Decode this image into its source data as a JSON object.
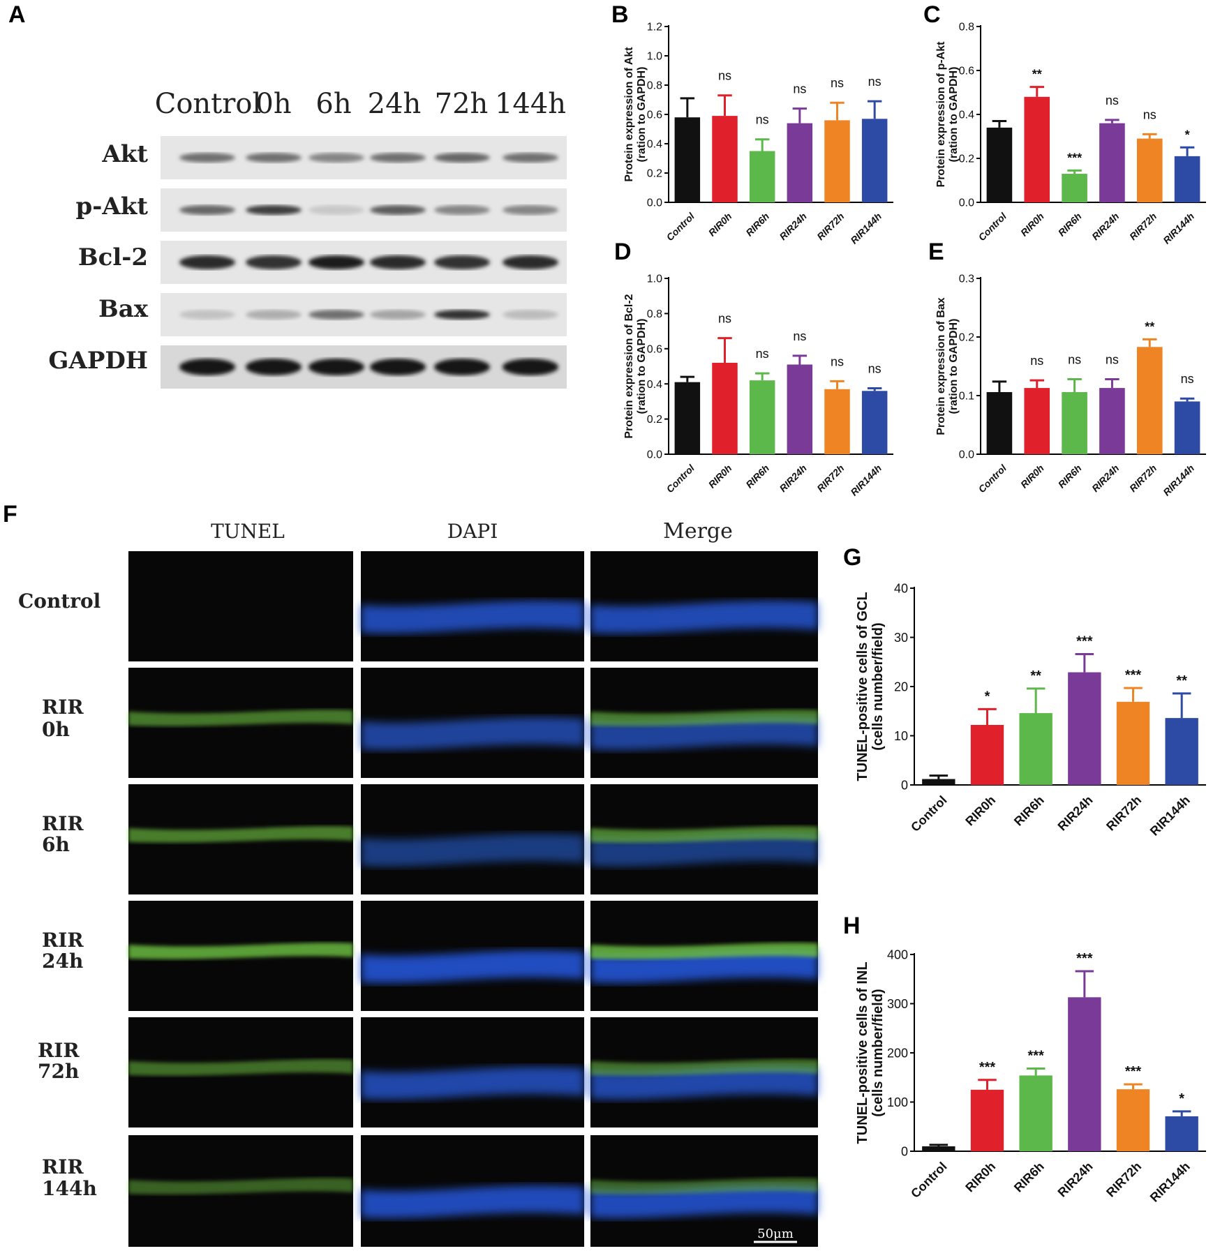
{
  "panel_letters": [
    "A",
    "B",
    "C",
    "D",
    "E",
    "F",
    "G",
    "H"
  ],
  "western_blot": {
    "lane_labels": [
      "Control",
      "0h",
      "6h",
      "24h",
      "72h",
      "144h"
    ],
    "row_labels": [
      "Akt",
      "p-Akt",
      "Bcl-2",
      "Bax",
      "GAPDH"
    ],
    "band_intensity": [
      [
        0.55,
        0.55,
        0.45,
        0.55,
        0.6,
        0.55
      ],
      [
        0.6,
        0.8,
        0.12,
        0.65,
        0.45,
        0.45
      ],
      [
        0.9,
        0.85,
        0.95,
        0.9,
        0.85,
        0.9
      ],
      [
        0.15,
        0.25,
        0.55,
        0.3,
        0.85,
        0.18
      ],
      [
        1,
        1,
        1,
        1,
        1,
        1
      ]
    ]
  },
  "microscopy": {
    "column_labels": [
      "TUNEL",
      "DAPI",
      "Merge"
    ],
    "row_labels": [
      [
        "Control"
      ],
      [
        "RIR",
        "0h"
      ],
      [
        "RIR",
        "6h"
      ],
      [
        "RIR",
        "24h"
      ],
      [
        "RIR",
        "72h"
      ],
      [
        "RIR",
        "144h"
      ]
    ],
    "scale_bar_label": "50μm"
  },
  "chart_data": [
    {
      "panel": "B",
      "type": "bar",
      "categories": [
        "Control",
        "RIR0h",
        "RIR6h",
        "RIR24h",
        "RIR72h",
        "RIR144h"
      ],
      "values": [
        0.58,
        0.59,
        0.35,
        0.54,
        0.56,
        0.57
      ],
      "errors": [
        0.13,
        0.14,
        0.08,
        0.1,
        0.12,
        0.12
      ],
      "annotations": [
        "",
        "ns",
        "ns",
        "ns",
        "ns",
        "ns"
      ],
      "ylabel": [
        "Protein expression of Akt",
        "(ration to GAPDH)"
      ],
      "ylim": [
        0,
        1.2
      ],
      "ticks": [
        "0.0",
        "0.2",
        "0.4",
        "0.6",
        "0.8",
        "1.0",
        "1.2"
      ]
    },
    {
      "panel": "C",
      "type": "bar",
      "categories": [
        "Control",
        "RIR0h",
        "RIR6h",
        "RIR24h",
        "RIR72h",
        "RIR144h"
      ],
      "values": [
        0.34,
        0.48,
        0.13,
        0.36,
        0.29,
        0.21
      ],
      "errors": [
        0.03,
        0.045,
        0.015,
        0.015,
        0.02,
        0.04
      ],
      "annotations": [
        "",
        "**",
        "***",
        "ns",
        "ns",
        "*"
      ],
      "ylabel": [
        "Protein expression of p-Akt",
        "(ration to GAPDH)"
      ],
      "ylim": [
        0,
        0.8
      ],
      "ticks": [
        "0.0",
        "0.2",
        "0.4",
        "0.6",
        "0.8"
      ]
    },
    {
      "panel": "D",
      "type": "bar",
      "categories": [
        "Control",
        "RIR0h",
        "RIR6h",
        "RIR24h",
        "RIR72h",
        "RIR144h"
      ],
      "values": [
        0.41,
        0.52,
        0.42,
        0.51,
        0.37,
        0.36
      ],
      "errors": [
        0.03,
        0.14,
        0.04,
        0.05,
        0.045,
        0.015
      ],
      "annotations": [
        "",
        "ns",
        "ns",
        "ns",
        "ns",
        "ns"
      ],
      "ylabel": [
        "Protein expression of Bcl-2",
        "(ration to GAPDH)"
      ],
      "ylim": [
        0,
        1.0
      ],
      "ticks": [
        "0.0",
        "0.2",
        "0.4",
        "0.6",
        "0.8",
        "1.0"
      ]
    },
    {
      "panel": "E",
      "type": "bar",
      "categories": [
        "Control",
        "RIR0h",
        "RIR6h",
        "RIR24h",
        "RIR72h",
        "RIR144h"
      ],
      "values": [
        0.106,
        0.113,
        0.106,
        0.113,
        0.183,
        0.09
      ],
      "errors": [
        0.018,
        0.013,
        0.022,
        0.015,
        0.013,
        0.005
      ],
      "annotations": [
        "",
        "ns",
        "ns",
        "ns",
        "**",
        "ns"
      ],
      "ylabel": [
        "Protein expression of Bax",
        "(ration to GAPDH)"
      ],
      "ylim": [
        0,
        0.3
      ],
      "ticks": [
        "0.0",
        "0.1",
        "0.2",
        "0.3"
      ]
    },
    {
      "panel": "G",
      "type": "bar",
      "categories": [
        "Control",
        "RIR0h",
        "RIR6h",
        "RIR24h",
        "RIR72h",
        "RIR144h"
      ],
      "values": [
        1.2,
        12.2,
        14.6,
        22.9,
        16.9,
        13.6
      ],
      "errors": [
        0.7,
        3.2,
        5.0,
        3.7,
        2.8,
        5.0
      ],
      "annotations": [
        "",
        "*",
        "**",
        "***",
        "***",
        "**"
      ],
      "ylabel": [
        "TUNEL-positive cells of GCL",
        "(cells number/field)"
      ],
      "ylim": [
        0,
        40
      ],
      "ticks": [
        "0",
        "10",
        "20",
        "30",
        "40"
      ]
    },
    {
      "panel": "H",
      "type": "bar",
      "categories": [
        "Control",
        "RIR0h",
        "RIR6h",
        "RIR24h",
        "RIR72h",
        "RIR144h"
      ],
      "values": [
        10,
        125,
        154,
        313,
        126,
        71
      ],
      "errors": [
        3,
        20,
        14,
        53,
        10,
        10
      ],
      "annotations": [
        "",
        "***",
        "***",
        "***",
        "***",
        "*"
      ],
      "ylabel": [
        "TUNEL-positive cells of INL",
        "(cells number/field)"
      ],
      "ylim": [
        0,
        400
      ],
      "ticks": [
        "0",
        "100",
        "200",
        "300",
        "400"
      ]
    }
  ],
  "bar_colors": [
    "#111111",
    "#e0202a",
    "#5cb84a",
    "#7a3b98",
    "#ef8424",
    "#2d4aa5"
  ]
}
